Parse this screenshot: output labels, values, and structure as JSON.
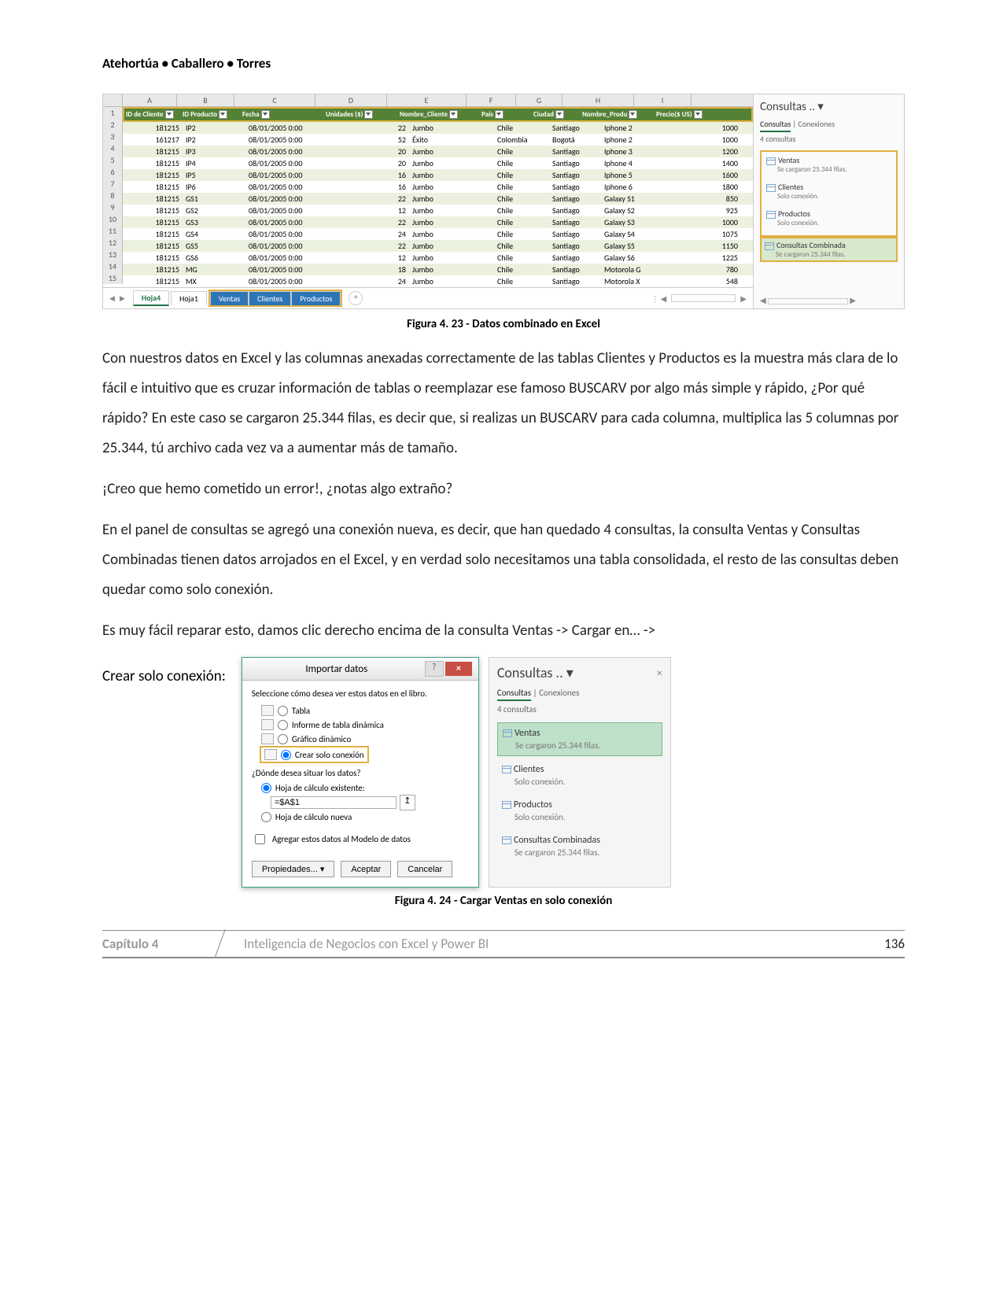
{
  "authors": "Atehortúa • Caballero • Torres",
  "excel1": {
    "columns_letters": [
      "A",
      "B",
      "C",
      "D",
      "E",
      "F",
      "G",
      "H",
      "I"
    ],
    "headers": [
      "ID de Cliente",
      "ID Producto",
      "Fecha",
      "Unidades ($)",
      "Nombre_Cliente",
      "País",
      "Ciudad",
      "Nombre_Produ",
      "Precio($ US)"
    ],
    "rows": [
      [
        "181215",
        "IP2",
        "08/01/2005 0:00",
        "22",
        "Jumbo",
        "Chile",
        "Santiago",
        "Iphone 2",
        "1000"
      ],
      [
        "161217",
        "IP2",
        "08/01/2005 0:00",
        "52",
        "Éxito",
        "Colombia",
        "Bogotá",
        "Iphone 2",
        "1000"
      ],
      [
        "181215",
        "IP3",
        "08/01/2005 0:00",
        "20",
        "Jumbo",
        "Chile",
        "Santiago",
        "Iphone 3",
        "1200"
      ],
      [
        "181215",
        "IP4",
        "08/01/2005 0:00",
        "20",
        "Jumbo",
        "Chile",
        "Santiago",
        "Iphone 4",
        "1400"
      ],
      [
        "181215",
        "IP5",
        "08/01/2005 0:00",
        "16",
        "Jumbo",
        "Chile",
        "Santiago",
        "Iphone 5",
        "1600"
      ],
      [
        "181215",
        "IP6",
        "08/01/2005 0:00",
        "16",
        "Jumbo",
        "Chile",
        "Santiago",
        "Iphone 6",
        "1800"
      ],
      [
        "181215",
        "GS1",
        "08/01/2005 0:00",
        "22",
        "Jumbo",
        "Chile",
        "Santiago",
        "Galaxy S1",
        "850"
      ],
      [
        "181215",
        "GS2",
        "08/01/2005 0:00",
        "12",
        "Jumbo",
        "Chile",
        "Santiago",
        "Galaxy S2",
        "925"
      ],
      [
        "181215",
        "GS3",
        "08/01/2005 0:00",
        "22",
        "Jumbo",
        "Chile",
        "Santiago",
        "Galaxy S3",
        "1000"
      ],
      [
        "181215",
        "GS4",
        "08/01/2005 0:00",
        "24",
        "Jumbo",
        "Chile",
        "Santiago",
        "Galaxy S4",
        "1075"
      ],
      [
        "181215",
        "GS5",
        "08/01/2005 0:00",
        "22",
        "Jumbo",
        "Chile",
        "Santiago",
        "Galaxy S5",
        "1150"
      ],
      [
        "181215",
        "GS6",
        "08/01/2005 0:00",
        "12",
        "Jumbo",
        "Chile",
        "Santiago",
        "Galaxy S6",
        "1225"
      ],
      [
        "181215",
        "MG",
        "08/01/2005 0:00",
        "18",
        "Jumbo",
        "Chile",
        "Santiago",
        "Motorola G",
        "780"
      ],
      [
        "181215",
        "MX",
        "08/01/2005 0:00",
        "24",
        "Jumbo",
        "Chile",
        "Santiago",
        "Motorola X",
        "548"
      ]
    ],
    "row_numbers": [
      "1",
      "2",
      "3",
      "4",
      "5",
      "6",
      "7",
      "8",
      "9",
      "10",
      "11",
      "12",
      "13",
      "14",
      "15"
    ],
    "tabs": {
      "active": "Hoja4",
      "plain": "Hoja1",
      "sel": [
        "Ventas",
        "Clientes",
        "Productos"
      ]
    },
    "sidebar": {
      "title": "Consultas ..",
      "tab1": "Consultas",
      "tab2": "Conexiones",
      "count": "4 consultas",
      "items": [
        {
          "name": "Ventas",
          "status": "Se cargaron 25.344 filas."
        },
        {
          "name": "Clientes",
          "status": "Solo conexión."
        },
        {
          "name": "Productos",
          "status": "Solo conexión."
        },
        {
          "name": "Consultas Combinada",
          "status": "Se cargaron 25.344 filas.",
          "hl": true
        }
      ]
    }
  },
  "fig1_caption": "Figura 4. 23 -  Datos combinado en Excel",
  "para1": "Con nuestros datos en Excel y las columnas anexadas correctamente de las tablas Clientes y Productos es la muestra más clara de lo fácil e intuitivo que es cruzar información de tablas o reemplazar ese famoso BUSCARV por algo más simple y rápido, ¿Por qué rápido? En este caso se cargaron 25.344 filas, es decir que, si realizas un BUSCARV para cada columna, multiplica las 5 columnas por 25.344, tú archivo cada vez va a aumentar más de tamaño.",
  "para2": "¡Creo que hemo cometido un error!, ¿notas algo extraño?",
  "para3": "En el panel de consultas se agregó una conexión nueva, es decir, que han quedado 4 consultas, la consulta Ventas y Consultas Combinadas tienen datos arrojados en el Excel, y en verdad solo necesitamos una tabla consolidada, el resto de las consultas deben quedar como solo conexión.",
  "para4": "Es muy fácil reparar esto, damos clic derecho encima de la consulta Ventas -> Cargar en… ->",
  "dialog_intro": "Crear solo conexión:",
  "dialog": {
    "title": "Importar datos",
    "heading": "Seleccione cómo desea ver estos datos en el libro.",
    "opt_table": "Tabla",
    "opt_pivot": "Informe de tabla dinámica",
    "opt_chart": "Gráfico dinámico",
    "opt_conn": "Crear solo conexión",
    "where": "¿Dónde desea situar los datos?",
    "existing": "Hoja de cálculo existente:",
    "cell": "=$A$1",
    "newsheet": "Hoja de cálculo nueva",
    "model": "Agregar estos datos al Modelo de datos",
    "btn_props": "Propiedades...",
    "btn_ok": "Aceptar",
    "btn_cancel": "Cancelar"
  },
  "sidebar2": {
    "title": "Consultas ..",
    "tab1": "Consultas",
    "tab2": "Conexiones",
    "count": "4 consultas",
    "items": [
      {
        "name": "Ventas",
        "status": "Se cargaron 25.344 filas.",
        "active": true
      },
      {
        "name": "Clientes",
        "status": "Solo conexión."
      },
      {
        "name": "Productos",
        "status": "Solo conexión."
      },
      {
        "name": "Consultas Combinadas",
        "status": "Se cargaron 25.344 filas."
      }
    ]
  },
  "fig2_caption": "Figura 4. 24 -  Cargar Ventas en solo conexión",
  "footer": {
    "chapter": "Capítulo 4",
    "title": "Inteligencia de Negocios con Excel y Power BI",
    "page": "136"
  },
  "colors": {
    "excel_green": "#548235",
    "highlight": "#e0b040",
    "tab_blue": "#2e75b6"
  }
}
